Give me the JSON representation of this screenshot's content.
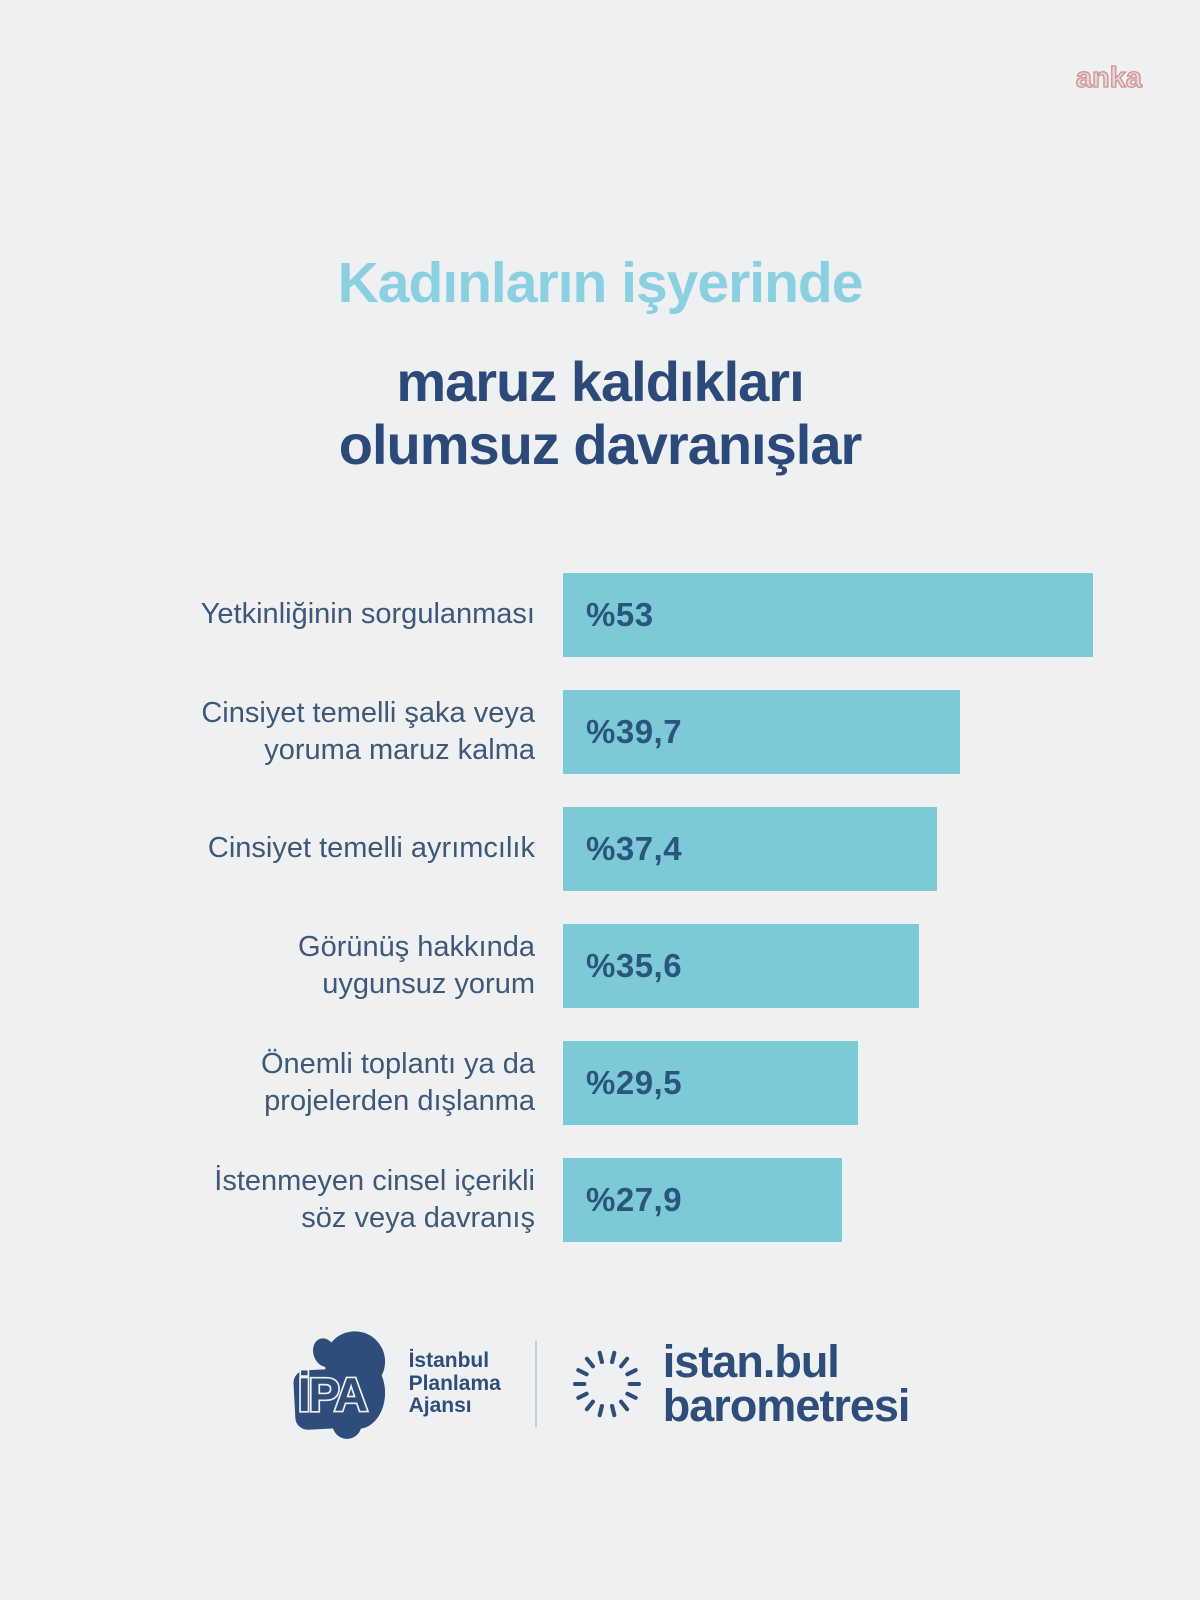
{
  "page": {
    "background_color": "#eef0f2"
  },
  "watermark": {
    "text": "anka",
    "color": "#cf8f8f"
  },
  "title": {
    "line1": "Kadınların işyerinde",
    "line2": "maruz kaldıkları",
    "line3": "olumsuz davranışlar",
    "line1_color": "#8bd0e0",
    "dark_color": "#2b4a7a"
  },
  "chart_data": {
    "type": "bar",
    "orientation": "horizontal",
    "title": "Kadınların işyerinde maruz kaldıkları olumsuz davranışlar",
    "categories": [
      "Yetkinliğinin sorgulanması",
      "Cinsiyet temelli şaka veya\nyoruma maruz kalma",
      "Cinsiyet temelli ayrımcılık",
      "Görünüş hakkında\nuygunsuz yorum",
      "Önemli toplantı ya da\nprojelerden dışlanma",
      "İstenmeyen cinsel içerikli\nsöz veya davranış"
    ],
    "values": [
      53,
      39.7,
      37.4,
      35.6,
      29.5,
      27.9
    ],
    "value_labels": [
      "%53",
      "%39,7",
      "%37,4",
      "%35,6",
      "%29,5",
      "%27,9"
    ],
    "max_value": 53,
    "unit": "percent",
    "bar_color": "#7ccad8",
    "value_label_color": "#2a567e",
    "category_label_color": "#3d5878",
    "grid": "off",
    "axes": "hidden",
    "legend": "none"
  },
  "footer": {
    "ipa": {
      "abbr": "İPA",
      "line1": "İstanbul",
      "line2": "Planlama",
      "line3": "Ajansı"
    },
    "barometre": {
      "line1": "istan.bul",
      "line2": "barometresi"
    },
    "logo_color": "#2e4d7b"
  }
}
